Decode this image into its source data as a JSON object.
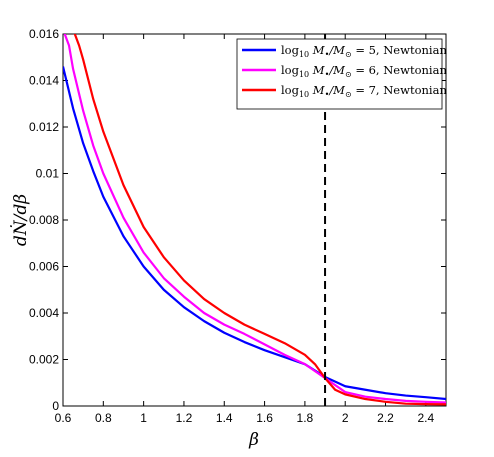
{
  "chart_data": {
    "type": "line",
    "title": "",
    "xlabel": "β",
    "ylabel": "dṄ/dβ",
    "xlim": [
      0.6,
      2.5
    ],
    "ylim": [
      0,
      0.016
    ],
    "xticks": [
      "0.6",
      "0.8",
      "1",
      "1.2",
      "1.4",
      "1.6",
      "1.8",
      "2",
      "2.2",
      "2.4"
    ],
    "yticks": [
      "0",
      "0.002",
      "0.004",
      "0.006",
      "0.008",
      "0.01",
      "0.012",
      "0.014",
      "0.016"
    ],
    "grid": false,
    "legend_position": "top-right",
    "vline": {
      "x": 1.9,
      "style": "dashed",
      "color": "#000000"
    },
    "series": [
      {
        "name": "log10 M•/M⊙ = 5, Newtonian",
        "legend": {
          "pre": "log",
          "sub": "10",
          "mid": " M",
          "sub2": "•",
          "post": "/M",
          "sub3": "⊙",
          "tail": " = 5, Newtonian"
        },
        "color": "#0000ff",
        "x": [
          0.6,
          0.65,
          0.7,
          0.75,
          0.8,
          0.9,
          1.0,
          1.1,
          1.2,
          1.3,
          1.4,
          1.5,
          1.6,
          1.7,
          1.8,
          1.9,
          2.0,
          2.1,
          2.2,
          2.3,
          2.4,
          2.5
        ],
        "y": [
          0.0146,
          0.0128,
          0.0113,
          0.0101,
          0.009,
          0.0073,
          0.006,
          0.005,
          0.00425,
          0.00365,
          0.00315,
          0.00275,
          0.0024,
          0.0021,
          0.0018,
          0.00125,
          0.00085,
          0.0007,
          0.00055,
          0.00045,
          0.00038,
          0.0003
        ]
      },
      {
        "name": "log10 M•/M⊙ = 6, Newtonian",
        "legend": {
          "pre": "log",
          "sub": "10",
          "mid": " M",
          "sub2": "•",
          "post": "/M",
          "sub3": "⊙",
          "tail": " = 6, Newtonian"
        },
        "color": "#ff00ff",
        "x": [
          0.6,
          0.63,
          0.65,
          0.7,
          0.75,
          0.8,
          0.9,
          1.0,
          1.1,
          1.2,
          1.3,
          1.4,
          1.5,
          1.6,
          1.7,
          1.8,
          1.9,
          2.0,
          2.1,
          2.2,
          2.3,
          2.4,
          2.5
        ],
        "y": [
          0.0162,
          0.0155,
          0.0145,
          0.0127,
          0.0112,
          0.01,
          0.0081,
          0.0066,
          0.0055,
          0.0047,
          0.004,
          0.0035,
          0.0031,
          0.00265,
          0.0022,
          0.0018,
          0.0012,
          0.0006,
          0.0004,
          0.0003,
          0.00022,
          0.00018,
          0.00015
        ]
      },
      {
        "name": "log10 M•/M⊙ = 7, Newtonian",
        "legend": {
          "pre": "log",
          "sub": "10",
          "mid": " M",
          "sub2": "•",
          "post": "/M",
          "sub3": "⊙",
          "tail": " = 7, Newtonian"
        },
        "color": "#ff0000",
        "x": [
          0.6,
          0.65,
          0.68,
          0.7,
          0.75,
          0.8,
          0.9,
          1.0,
          1.1,
          1.2,
          1.3,
          1.4,
          1.5,
          1.6,
          1.7,
          1.8,
          1.85,
          1.9,
          1.95,
          2.0,
          2.1,
          2.2,
          2.3,
          2.4,
          2.5
        ],
        "y": [
          0.0165,
          0.0162,
          0.0155,
          0.0149,
          0.0132,
          0.0118,
          0.0095,
          0.0077,
          0.0064,
          0.0054,
          0.0046,
          0.004,
          0.0035,
          0.0031,
          0.0027,
          0.0022,
          0.0018,
          0.0012,
          0.0007,
          0.0005,
          0.0003,
          0.00018,
          0.0001,
          8e-05,
          7e-05
        ]
      }
    ]
  }
}
